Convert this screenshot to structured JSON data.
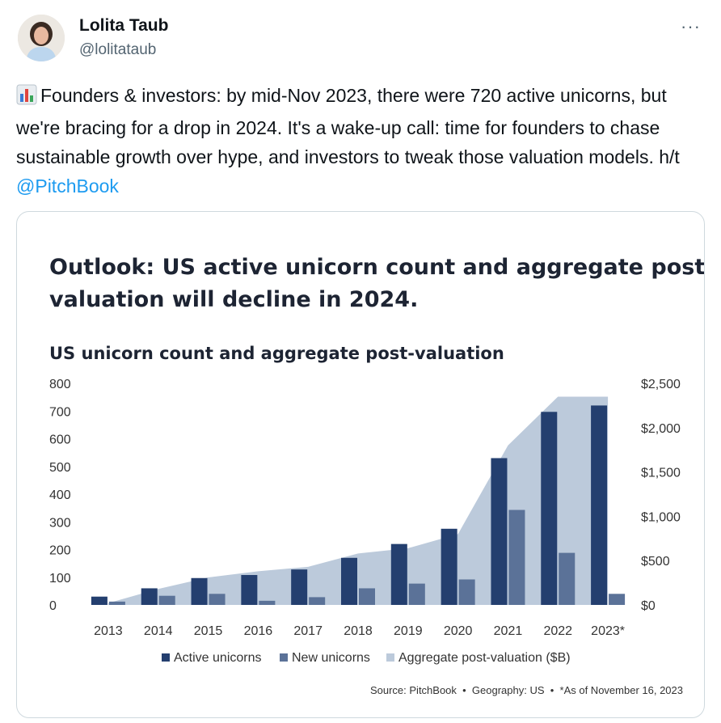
{
  "author": {
    "name": "Lolita Taub",
    "handle": "@lolitataub"
  },
  "menu": {
    "more": "···"
  },
  "tweet": {
    "emoji": "bar-chart-icon",
    "text": "Founders & investors: by mid-Nov 2023, there were 720 active unicorns, but we're bracing for a drop in 2024. It's a wake-up call: time for founders to chase sustainable growth over hype, and investors to tweak those valuation models. h/t ",
    "mention": "@PitchBook"
  },
  "colors": {
    "active": "#243f6f",
    "new": "#5b7298",
    "area": "#bccadb",
    "link": "#1d9bf0"
  },
  "chart_data": {
    "type": "bar",
    "headline_line1": "Outlook: US active unicorn count and aggregate post-",
    "headline_line2": "valuation will decline in 2024.",
    "title": "US unicorn count and aggregate post-valuation",
    "categories": [
      "2013",
      "2014",
      "2015",
      "2016",
      "2017",
      "2018",
      "2019",
      "2020",
      "2021",
      "2022",
      "2023*"
    ],
    "series": [
      {
        "name": "Active unicorns",
        "values": [
          30,
          60,
          97,
          108,
          128,
          170,
          220,
          275,
          530,
          697,
          720
        ]
      },
      {
        "name": "New unicorns",
        "values": [
          12,
          33,
          40,
          15,
          28,
          60,
          77,
          92,
          343,
          188,
          40
        ]
      },
      {
        "name": "Aggregate post-valuation ($B)",
        "values": [
          20,
          180,
          310,
          380,
          430,
          580,
          640,
          800,
          1800,
          2350,
          2350
        ]
      }
    ],
    "y_left_ticks": [
      "800",
      "700",
      "600",
      "500",
      "400",
      "300",
      "200",
      "100",
      "0"
    ],
    "y_right_ticks": [
      "$2,500",
      "$2,000",
      "$1,500",
      "$1,000",
      "$500",
      "$0"
    ],
    "ylim_left": [
      0,
      800
    ],
    "ylim_right": [
      0,
      2500
    ],
    "legend_position": "bottom",
    "source": "Source: PitchBook  •  Geography: US  •  *As of November 16, 2023"
  }
}
